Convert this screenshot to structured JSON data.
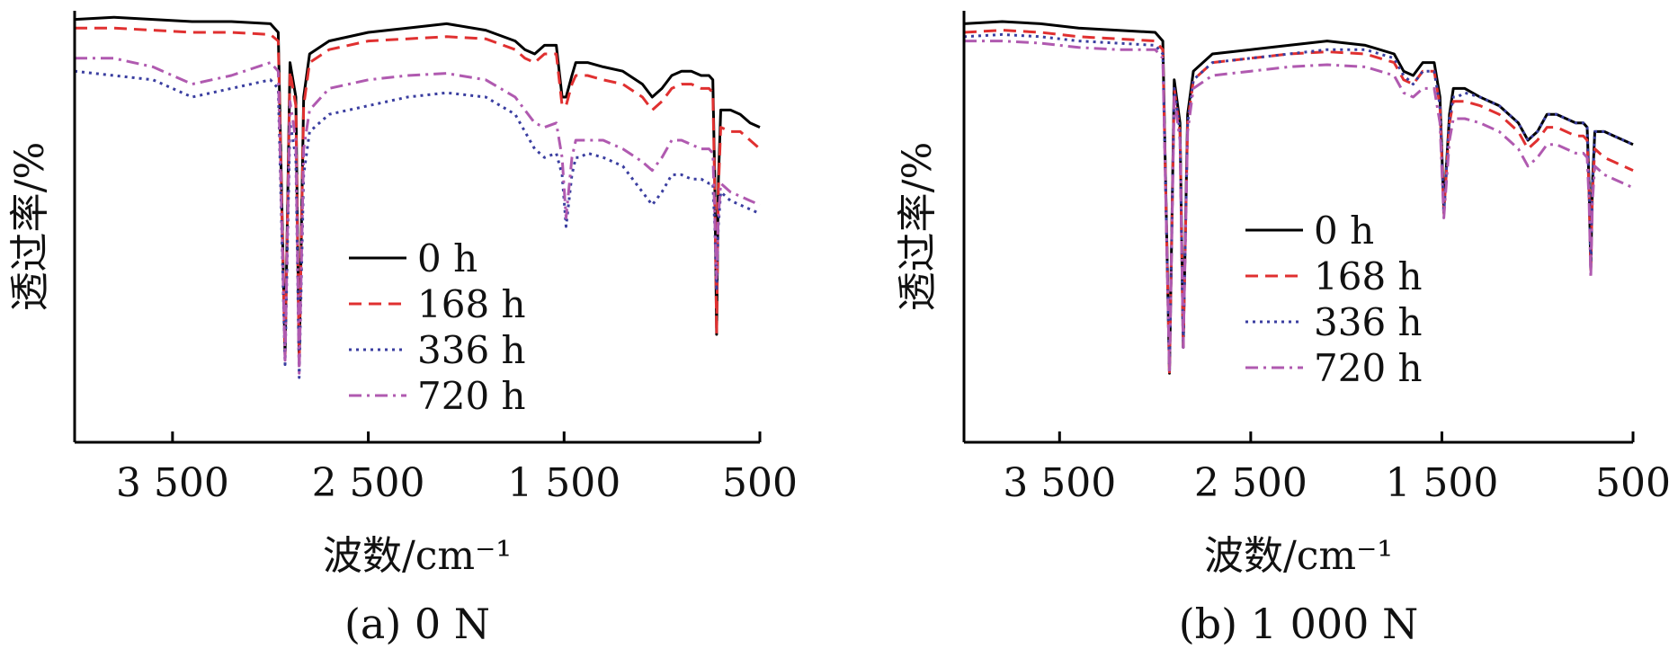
{
  "chart_data": [
    {
      "type": "line",
      "panel_label": "(a) 0 N",
      "xlabel": "波数/cm⁻¹",
      "ylabel": "透过率/%",
      "xlim": [
        4000,
        500
      ],
      "x_reversed": true,
      "xticks": [
        3500,
        2500,
        1500,
        500
      ],
      "xtick_labels": [
        "3 500",
        "2 500",
        "1 500",
        "500"
      ],
      "ylim": [
        0,
        100
      ],
      "y_tick_labels_shown": false,
      "grid": false,
      "legend_position": "center",
      "x": [
        4000,
        3800,
        3600,
        3400,
        3200,
        3000,
        2960,
        2925,
        2900,
        2870,
        2853,
        2830,
        2800,
        2700,
        2500,
        2300,
        2100,
        1900,
        1750,
        1700,
        1650,
        1600,
        1540,
        1510,
        1490,
        1460,
        1440,
        1420,
        1380,
        1300,
        1200,
        1100,
        1050,
        1000,
        950,
        900,
        850,
        800,
        760,
        740,
        730,
        721,
        712,
        700,
        650,
        600,
        550,
        500
      ],
      "series": [
        {
          "name": "0 h",
          "color": "#000000",
          "dash": "solid",
          "values": [
            98,
            98.5,
            98,
            97.5,
            97.5,
            97,
            95,
            20,
            88,
            80,
            18,
            80,
            90,
            93,
            95,
            96,
            97,
            95.5,
            93,
            91,
            90,
            92,
            92,
            80,
            80,
            85,
            88,
            88,
            88,
            87,
            86,
            83,
            80,
            82,
            85,
            86,
            86,
            85,
            85,
            84,
            60,
            25,
            60,
            77,
            77,
            76,
            74,
            73
          ]
        },
        {
          "name": "168 h",
          "color": "#e03030",
          "dash": "dash",
          "values": [
            96,
            96,
            95.5,
            95,
            95,
            94.5,
            93,
            20,
            86,
            78,
            18,
            78,
            88,
            91,
            93,
            93.5,
            94,
            93.5,
            91,
            89,
            88,
            90,
            90,
            78,
            78,
            83,
            85,
            85,
            85,
            84,
            83,
            80,
            77,
            79,
            82,
            83,
            83,
            82,
            82,
            81,
            58,
            25,
            58,
            73,
            72,
            72,
            70,
            68
          ]
        },
        {
          "name": "336 h",
          "color": "#3a3ea0",
          "dash": "dot",
          "values": [
            86,
            85,
            84,
            80,
            82,
            84,
            82,
            18,
            74,
            66,
            15,
            62,
            72,
            76,
            78,
            80,
            81,
            80,
            76,
            72,
            68,
            66,
            67,
            62,
            50,
            62,
            66,
            66,
            67,
            66,
            64,
            58,
            55,
            58,
            62,
            62,
            61,
            61,
            60,
            60,
            50,
            35,
            50,
            58,
            56,
            55,
            54,
            53
          ]
        },
        {
          "name": "720 h",
          "color": "#b05ab0",
          "dash": "dashdot",
          "values": [
            89,
            89,
            87,
            83,
            85,
            88,
            86,
            19,
            79,
            70,
            16,
            68,
            77,
            82,
            84,
            85,
            85.5,
            84,
            80,
            77,
            74,
            73,
            74,
            66,
            52,
            66,
            70,
            70,
            70,
            70,
            68,
            65,
            63,
            66,
            70,
            70,
            69,
            68,
            68,
            67,
            52,
            38,
            52,
            60,
            58,
            57,
            56,
            55
          ]
        }
      ]
    },
    {
      "type": "line",
      "panel_label": "(b) 1 000 N",
      "xlabel": "波数/cm⁻¹",
      "ylabel": "透过率/%",
      "xlim": [
        4000,
        500
      ],
      "x_reversed": true,
      "xticks": [
        3500,
        2500,
        1500,
        500
      ],
      "xtick_labels": [
        "3 500",
        "2 500",
        "1 500",
        "500"
      ],
      "ylim": [
        0,
        100
      ],
      "y_tick_labels_shown": false,
      "grid": false,
      "legend_position": "center",
      "x": [
        4000,
        3800,
        3600,
        3400,
        3200,
        3000,
        2960,
        2925,
        2900,
        2870,
        2853,
        2830,
        2800,
        2700,
        2500,
        2300,
        2100,
        1900,
        1750,
        1700,
        1650,
        1600,
        1540,
        1510,
        1490,
        1460,
        1440,
        1420,
        1380,
        1300,
        1200,
        1100,
        1050,
        1000,
        950,
        900,
        850,
        800,
        760,
        740,
        730,
        721,
        712,
        700,
        650,
        600,
        550,
        500
      ],
      "series": [
        {
          "name": "0 h",
          "color": "#000000",
          "dash": "solid",
          "values": [
            97,
            97.5,
            97,
            96,
            95.5,
            95,
            93,
            16,
            84,
            74,
            22,
            76,
            86,
            90,
            91,
            92,
            93,
            92,
            90,
            86,
            85,
            88,
            88,
            80,
            54,
            76,
            82,
            82,
            82,
            80,
            78,
            74,
            70,
            72,
            76,
            76,
            75,
            74,
            74,
            73,
            60,
            40,
            60,
            72,
            72,
            71,
            70,
            69
          ]
        },
        {
          "name": "168 h",
          "color": "#e03030",
          "dash": "dash",
          "values": [
            95,
            95.5,
            95,
            94,
            93.5,
            93,
            91,
            16,
            82,
            72,
            22,
            74,
            84,
            88,
            89,
            90,
            90.5,
            90,
            88,
            84,
            83,
            86,
            86,
            78,
            53,
            74,
            79,
            79,
            79,
            78,
            76,
            72,
            68,
            70,
            73,
            73,
            72,
            71,
            71,
            70,
            58,
            40,
            58,
            68,
            66,
            65,
            64,
            63
          ]
        },
        {
          "name": "336 h",
          "color": "#3a3ea0",
          "dash": "dot",
          "values": [
            94,
            94.5,
            94,
            93,
            92.5,
            92,
            90,
            16,
            82,
            72,
            22,
            74,
            84,
            88,
            89,
            90,
            91,
            91,
            89,
            85,
            83,
            86,
            86,
            78,
            53,
            75,
            80,
            80,
            81,
            80,
            78,
            74,
            70,
            72,
            76,
            76,
            75,
            74,
            74,
            73,
            60,
            40,
            60,
            72,
            72,
            71,
            70,
            69
          ]
        },
        {
          "name": "720 h",
          "color": "#b05ab0",
          "dash": "dashdot",
          "values": [
            93,
            93,
            92.5,
            91.5,
            91,
            91,
            89,
            16,
            80,
            70,
            22,
            72,
            82,
            85,
            86,
            87,
            87.5,
            87,
            85,
            81,
            80,
            82,
            82,
            74,
            52,
            70,
            75,
            75,
            75,
            74,
            72,
            68,
            64,
            66,
            69,
            69,
            68,
            67,
            67,
            66,
            56,
            38,
            56,
            64,
            62,
            61,
            60,
            59
          ]
        }
      ]
    }
  ]
}
